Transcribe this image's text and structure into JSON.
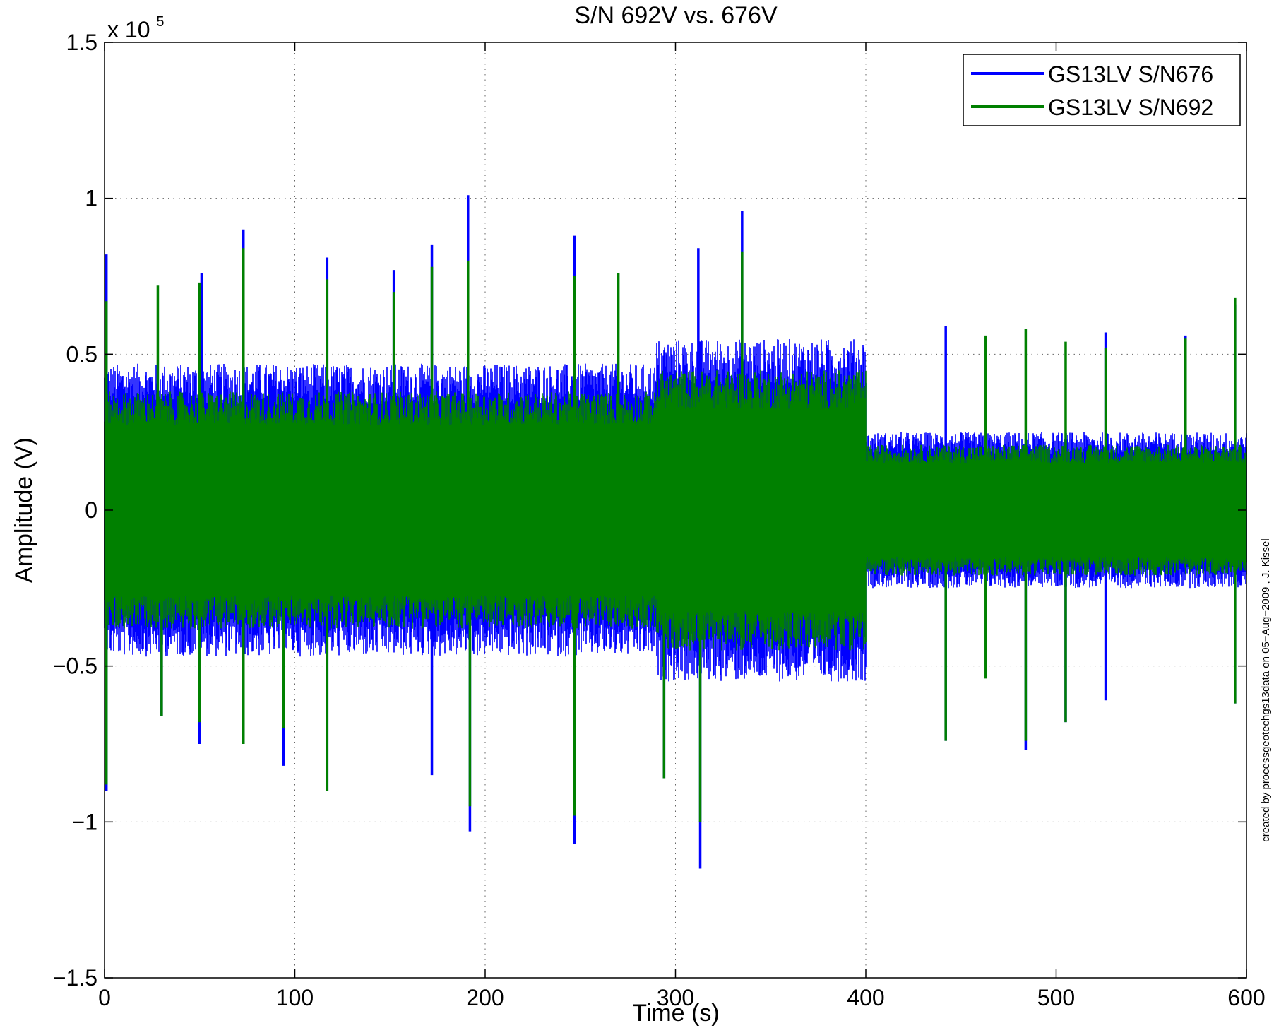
{
  "chart_data": {
    "type": "line",
    "title": "S/N 692V vs. 676V",
    "xlabel": "Time (s)",
    "ylabel": "Amplitude (V)",
    "y_multiplier_base": "x 10",
    "y_multiplier_exponent": "5",
    "xlim": [
      0,
      600
    ],
    "ylim": [
      -150000,
      150000
    ],
    "x_ticks": [
      0,
      100,
      200,
      300,
      400,
      500,
      600
    ],
    "x_tick_labels": [
      "0",
      "100",
      "200",
      "300",
      "400",
      "500",
      "600"
    ],
    "y_ticks": [
      -150000,
      -100000,
      -50000,
      0,
      50000,
      100000,
      150000
    ],
    "y_tick_labels": [
      "−1.5",
      "−1",
      "−0.5",
      "0",
      "0.5",
      "1",
      "1.5"
    ],
    "grid": true,
    "legend_position": "top-right",
    "credit": "created by processgeotechgs13data on 05−Aug−2009 , J. Kissel",
    "series": [
      {
        "name": "GS13LV S/N676",
        "color": "#0000ff",
        "envelope": [
          {
            "x_range": [
              0,
              400
            ],
            "upper": 47000,
            "lower": -47000
          },
          {
            "x_range": [
              290,
              400
            ],
            "upper": 55000,
            "lower": -55000
          },
          {
            "x_range": [
              400,
              600
            ],
            "upper": 25000,
            "lower": -25000
          }
        ],
        "spikes": [
          [
            1,
            82000
          ],
          [
            1,
            -90000
          ],
          [
            30,
            -66000
          ],
          [
            50,
            -75000
          ],
          [
            51,
            76000
          ],
          [
            73,
            90000
          ],
          [
            73,
            -75000
          ],
          [
            94,
            -82000
          ],
          [
            117,
            81000
          ],
          [
            117,
            -90000
          ],
          [
            152,
            77000
          ],
          [
            172,
            85000
          ],
          [
            172,
            -85000
          ],
          [
            191,
            101000
          ],
          [
            192,
            -103000
          ],
          [
            196,
            -40000
          ],
          [
            247,
            88000
          ],
          [
            247,
            -107000
          ],
          [
            294,
            -86000
          ],
          [
            313,
            -115000
          ],
          [
            312,
            84000
          ],
          [
            335,
            96000
          ],
          [
            442,
            59000
          ],
          [
            442,
            -74000
          ],
          [
            484,
            -77000
          ],
          [
            505,
            -68000
          ],
          [
            526,
            57000
          ],
          [
            526,
            -61000
          ],
          [
            568,
            56000
          ],
          [
            594,
            66000
          ],
          [
            594,
            -62000
          ]
        ]
      },
      {
        "name": "GS13LV S/N692",
        "color": "#008000",
        "envelope": [
          {
            "x_range": [
              0,
              400
            ],
            "upper": 38000,
            "lower": -38000
          },
          {
            "x_range": [
              290,
              400
            ],
            "upper": 45000,
            "lower": -45000
          },
          {
            "x_range": [
              400,
              600
            ],
            "upper": 21000,
            "lower": -21000
          }
        ],
        "spikes": [
          [
            1,
            67000
          ],
          [
            1,
            -88000
          ],
          [
            28,
            72000
          ],
          [
            30,
            -66000
          ],
          [
            50,
            73000
          ],
          [
            50,
            -68000
          ],
          [
            73,
            84000
          ],
          [
            73,
            -75000
          ],
          [
            94,
            -70000
          ],
          [
            117,
            74000
          ],
          [
            117,
            -90000
          ],
          [
            152,
            70000
          ],
          [
            172,
            78000
          ],
          [
            191,
            80000
          ],
          [
            192,
            -95000
          ],
          [
            247,
            75000
          ],
          [
            247,
            -98000
          ],
          [
            270,
            76000
          ],
          [
            294,
            -86000
          ],
          [
            313,
            -100000
          ],
          [
            335,
            83000
          ],
          [
            442,
            -74000
          ],
          [
            463,
            56000
          ],
          [
            463,
            -54000
          ],
          [
            484,
            58000
          ],
          [
            484,
            -74000
          ],
          [
            505,
            54000
          ],
          [
            505,
            -68000
          ],
          [
            526,
            52000
          ],
          [
            568,
            55000
          ],
          [
            594,
            68000
          ],
          [
            594,
            -62000
          ]
        ]
      }
    ]
  }
}
